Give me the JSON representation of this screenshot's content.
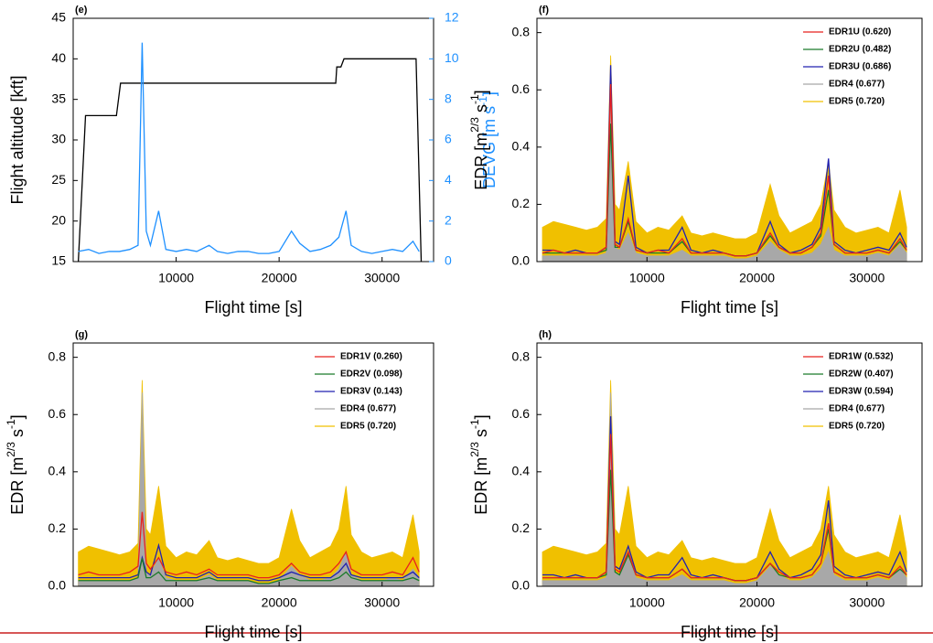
{
  "chart_data": [
    {
      "type": "line",
      "label": "(e)",
      "xlabel": "Flight time [s]",
      "ylabel_parts": [
        "Flight altitude [kft]"
      ],
      "y2label_parts": [
        "DEVG [m s",
        "-1",
        "]"
      ],
      "x": [
        500,
        1500,
        2500,
        3500,
        4500,
        5500,
        6300,
        6700,
        7100,
        7500,
        8300,
        9000,
        10000,
        11000,
        12000,
        13200,
        14000,
        15000,
        16000,
        17000,
        18000,
        19000,
        20000,
        21200,
        22000,
        23000,
        24000,
        25000,
        25800,
        26500,
        27000,
        28000,
        29000,
        30000,
        31000,
        32000,
        33000,
        33600
      ],
      "xlim": [
        0,
        35000
      ],
      "xticks": [
        10000,
        20000,
        30000
      ],
      "ylim": [
        15,
        45
      ],
      "yticks": [
        15,
        20,
        25,
        30,
        35,
        40,
        45
      ],
      "y2lim": [
        0,
        12
      ],
      "y2ticks": [
        0,
        2,
        4,
        6,
        8,
        10,
        12
      ],
      "y2color": "#1e90ff",
      "series": [
        {
          "axis": "y2",
          "color": "#1e90ff",
          "values": [
            0.5,
            0.6,
            0.4,
            0.5,
            0.5,
            0.6,
            0.8,
            10.8,
            1.5,
            0.8,
            2.5,
            0.6,
            0.5,
            0.6,
            0.5,
            0.8,
            0.5,
            0.4,
            0.5,
            0.5,
            0.4,
            0.4,
            0.5,
            1.5,
            0.9,
            0.5,
            0.6,
            0.8,
            1.2,
            2.5,
            0.8,
            0.5,
            0.4,
            0.5,
            0.6,
            0.5,
            1.0,
            0.5
          ]
        },
        {
          "color": "#000000",
          "x": [
            500,
            1200,
            4200,
            4600,
            25500,
            25600,
            26000,
            26300,
            33300,
            33800
          ],
          "values": [
            15,
            33,
            33,
            37,
            37,
            39,
            39,
            40,
            40,
            15
          ]
        }
      ]
    },
    {
      "type": "line",
      "label": "(f)",
      "xlabel": "Flight time [s]",
      "ylabel_parts": [
        "EDR [m",
        "2/3",
        " s",
        "-1",
        "]"
      ],
      "x": [
        500,
        1500,
        2500,
        3500,
        4500,
        5500,
        6300,
        6700,
        7100,
        7500,
        8300,
        9000,
        10000,
        11000,
        12000,
        13200,
        14000,
        15000,
        16000,
        17000,
        18000,
        19000,
        20000,
        21200,
        22000,
        23000,
        24000,
        25000,
        25800,
        26500,
        27000,
        28000,
        29000,
        30000,
        31000,
        32000,
        33000,
        33600
      ],
      "xlim": [
        0,
        35000
      ],
      "xticks": [
        10000,
        20000,
        30000
      ],
      "ylim": [
        0,
        0.85
      ],
      "yticks": [
        {
          "value": 0,
          "label": "0.0"
        },
        0.2,
        0.4,
        0.6,
        0.8
      ],
      "legend": "upper right",
      "series": [
        {
          "name": "EDR1U (0.620)",
          "color": "#e8211f",
          "values": [
            0.03,
            0.04,
            0.03,
            0.03,
            0.03,
            0.03,
            0.05,
            0.62,
            0.06,
            0.05,
            0.15,
            0.04,
            0.03,
            0.04,
            0.03,
            0.08,
            0.03,
            0.03,
            0.03,
            0.03,
            0.02,
            0.02,
            0.03,
            0.1,
            0.05,
            0.03,
            0.03,
            0.05,
            0.1,
            0.3,
            0.06,
            0.03,
            0.03,
            0.03,
            0.04,
            0.03,
            0.08,
            0.04
          ]
        },
        {
          "name": "EDR2U (0.482)",
          "color": "#1a7a2a",
          "values": [
            0.03,
            0.03,
            0.03,
            0.03,
            0.03,
            0.03,
            0.04,
            0.482,
            0.05,
            0.05,
            0.14,
            0.04,
            0.03,
            0.03,
            0.03,
            0.07,
            0.03,
            0.03,
            0.03,
            0.03,
            0.02,
            0.02,
            0.03,
            0.09,
            0.05,
            0.03,
            0.03,
            0.05,
            0.09,
            0.25,
            0.06,
            0.03,
            0.03,
            0.03,
            0.04,
            0.03,
            0.07,
            0.04
          ]
        },
        {
          "name": "EDR3U (0.686)",
          "color": "#2020b0",
          "values": [
            0.04,
            0.04,
            0.03,
            0.04,
            0.03,
            0.03,
            0.05,
            0.686,
            0.07,
            0.06,
            0.3,
            0.05,
            0.03,
            0.04,
            0.04,
            0.12,
            0.04,
            0.03,
            0.04,
            0.03,
            0.02,
            0.02,
            0.03,
            0.14,
            0.06,
            0.03,
            0.04,
            0.06,
            0.12,
            0.36,
            0.07,
            0.04,
            0.03,
            0.04,
            0.05,
            0.04,
            0.1,
            0.05
          ]
        },
        {
          "name": "EDR4 (0.677)",
          "color": "#a8a8a8",
          "style": "area",
          "values": [
            0.02,
            0.02,
            0.02,
            0.02,
            0.02,
            0.02,
            0.03,
            0.677,
            0.05,
            0.04,
            0.1,
            0.03,
            0.02,
            0.02,
            0.02,
            0.04,
            0.02,
            0.02,
            0.02,
            0.02,
            0.01,
            0.01,
            0.02,
            0.07,
            0.04,
            0.02,
            0.02,
            0.03,
            0.06,
            0.12,
            0.04,
            0.02,
            0.02,
            0.02,
            0.03,
            0.02,
            0.06,
            0.03
          ]
        },
        {
          "name": "EDR5 (0.720)",
          "color": "#f0c000",
          "style": "area",
          "values": [
            0.12,
            0.14,
            0.13,
            0.12,
            0.11,
            0.12,
            0.15,
            0.72,
            0.2,
            0.18,
            0.35,
            0.14,
            0.1,
            0.12,
            0.11,
            0.16,
            0.1,
            0.09,
            0.1,
            0.09,
            0.08,
            0.08,
            0.1,
            0.27,
            0.16,
            0.1,
            0.12,
            0.14,
            0.2,
            0.35,
            0.18,
            0.12,
            0.1,
            0.11,
            0.12,
            0.1,
            0.25,
            0.12
          ]
        }
      ]
    },
    {
      "type": "line",
      "label": "(g)",
      "xlabel": "Flight time [s]",
      "ylabel_parts": [
        "EDR [m",
        "2/3",
        " s",
        "-1",
        "]"
      ],
      "x": [
        500,
        1500,
        2500,
        3500,
        4500,
        5500,
        6300,
        6700,
        7100,
        7500,
        8300,
        9000,
        10000,
        11000,
        12000,
        13200,
        14000,
        15000,
        16000,
        17000,
        18000,
        19000,
        20000,
        21200,
        22000,
        23000,
        24000,
        25000,
        25800,
        26500,
        27000,
        28000,
        29000,
        30000,
        31000,
        32000,
        33000,
        33600
      ],
      "xlim": [
        0,
        35000
      ],
      "xticks": [
        10000,
        20000,
        30000
      ],
      "ylim": [
        0,
        0.85
      ],
      "yticks": [
        {
          "value": 0,
          "label": "0.0"
        },
        0.2,
        0.4,
        0.6,
        0.8
      ],
      "legend": "upper right",
      "series": [
        {
          "name": "EDR1V (0.260)",
          "color": "#e8211f",
          "values": [
            0.04,
            0.05,
            0.04,
            0.04,
            0.04,
            0.05,
            0.07,
            0.26,
            0.08,
            0.06,
            0.1,
            0.05,
            0.04,
            0.05,
            0.04,
            0.06,
            0.04,
            0.04,
            0.04,
            0.04,
            0.03,
            0.03,
            0.04,
            0.08,
            0.05,
            0.04,
            0.04,
            0.05,
            0.08,
            0.12,
            0.06,
            0.04,
            0.04,
            0.04,
            0.05,
            0.04,
            0.1,
            0.05
          ]
        },
        {
          "name": "EDR2V (0.098)",
          "color": "#1a7a2a",
          "values": [
            0.02,
            0.02,
            0.02,
            0.02,
            0.02,
            0.02,
            0.03,
            0.098,
            0.03,
            0.03,
            0.05,
            0.02,
            0.02,
            0.02,
            0.02,
            0.03,
            0.02,
            0.02,
            0.02,
            0.02,
            0.01,
            0.01,
            0.02,
            0.03,
            0.02,
            0.02,
            0.02,
            0.02,
            0.03,
            0.05,
            0.03,
            0.02,
            0.02,
            0.02,
            0.02,
            0.02,
            0.03,
            0.02
          ]
        },
        {
          "name": "EDR3V (0.143)",
          "color": "#2020b0",
          "values": [
            0.03,
            0.03,
            0.03,
            0.03,
            0.03,
            0.03,
            0.04,
            0.1,
            0.05,
            0.04,
            0.143,
            0.04,
            0.03,
            0.03,
            0.03,
            0.05,
            0.03,
            0.03,
            0.03,
            0.03,
            0.02,
            0.02,
            0.03,
            0.05,
            0.04,
            0.03,
            0.03,
            0.03,
            0.05,
            0.08,
            0.04,
            0.03,
            0.03,
            0.03,
            0.03,
            0.03,
            0.05,
            0.03
          ]
        },
        {
          "name": "EDR4 (0.677)",
          "color": "#a8a8a8",
          "style": "area",
          "values": [
            0.02,
            0.02,
            0.02,
            0.02,
            0.02,
            0.02,
            0.03,
            0.677,
            0.05,
            0.04,
            0.1,
            0.03,
            0.02,
            0.02,
            0.02,
            0.04,
            0.02,
            0.02,
            0.02,
            0.02,
            0.01,
            0.01,
            0.02,
            0.07,
            0.04,
            0.02,
            0.02,
            0.03,
            0.06,
            0.12,
            0.04,
            0.02,
            0.02,
            0.02,
            0.03,
            0.02,
            0.06,
            0.03
          ]
        },
        {
          "name": "EDR5 (0.720)",
          "color": "#f0c000",
          "style": "area",
          "values": [
            0.12,
            0.14,
            0.13,
            0.12,
            0.11,
            0.12,
            0.15,
            0.72,
            0.2,
            0.18,
            0.35,
            0.14,
            0.1,
            0.12,
            0.11,
            0.16,
            0.1,
            0.09,
            0.1,
            0.09,
            0.08,
            0.08,
            0.1,
            0.27,
            0.16,
            0.1,
            0.12,
            0.14,
            0.2,
            0.35,
            0.18,
            0.12,
            0.1,
            0.11,
            0.12,
            0.1,
            0.25,
            0.12
          ]
        }
      ]
    },
    {
      "type": "line",
      "label": "(h)",
      "xlabel": "Flight time [s]",
      "ylabel_parts": [
        "EDR [m",
        "2/3",
        " s",
        "-1",
        "]"
      ],
      "x": [
        500,
        1500,
        2500,
        3500,
        4500,
        5500,
        6300,
        6700,
        7100,
        7500,
        8300,
        9000,
        10000,
        11000,
        12000,
        13200,
        14000,
        15000,
        16000,
        17000,
        18000,
        19000,
        20000,
        21200,
        22000,
        23000,
        24000,
        25000,
        25800,
        26500,
        27000,
        28000,
        29000,
        30000,
        31000,
        32000,
        33000,
        33600
      ],
      "xlim": [
        0,
        35000
      ],
      "xticks": [
        10000,
        20000,
        30000
      ],
      "ylim": [
        0,
        0.85
      ],
      "yticks": [
        {
          "value": 0,
          "label": "0.0"
        },
        0.2,
        0.4,
        0.6,
        0.8
      ],
      "legend": "upper right",
      "series": [
        {
          "name": "EDR1W (0.532)",
          "color": "#e8211f",
          "values": [
            0.03,
            0.03,
            0.03,
            0.03,
            0.03,
            0.03,
            0.05,
            0.532,
            0.06,
            0.05,
            0.12,
            0.04,
            0.03,
            0.03,
            0.03,
            0.06,
            0.03,
            0.03,
            0.03,
            0.03,
            0.02,
            0.02,
            0.03,
            0.08,
            0.05,
            0.03,
            0.03,
            0.04,
            0.08,
            0.22,
            0.05,
            0.03,
            0.03,
            0.03,
            0.04,
            0.03,
            0.07,
            0.04
          ]
        },
        {
          "name": "EDR2W (0.407)",
          "color": "#1a7a2a",
          "values": [
            0.03,
            0.03,
            0.03,
            0.03,
            0.03,
            0.03,
            0.04,
            0.407,
            0.05,
            0.04,
            0.11,
            0.04,
            0.03,
            0.03,
            0.03,
            0.06,
            0.03,
            0.03,
            0.03,
            0.03,
            0.02,
            0.02,
            0.03,
            0.08,
            0.04,
            0.03,
            0.03,
            0.04,
            0.08,
            0.2,
            0.05,
            0.03,
            0.03,
            0.03,
            0.04,
            0.03,
            0.06,
            0.04
          ]
        },
        {
          "name": "EDR3W (0.594)",
          "color": "#2020b0",
          "values": [
            0.04,
            0.04,
            0.03,
            0.04,
            0.03,
            0.03,
            0.05,
            0.594,
            0.07,
            0.06,
            0.14,
            0.05,
            0.03,
            0.04,
            0.04,
            0.1,
            0.04,
            0.03,
            0.04,
            0.03,
            0.02,
            0.02,
            0.03,
            0.12,
            0.06,
            0.03,
            0.04,
            0.06,
            0.11,
            0.3,
            0.07,
            0.04,
            0.03,
            0.04,
            0.05,
            0.04,
            0.12,
            0.05
          ]
        },
        {
          "name": "EDR4 (0.677)",
          "color": "#a8a8a8",
          "style": "area",
          "values": [
            0.02,
            0.02,
            0.02,
            0.02,
            0.02,
            0.02,
            0.03,
            0.677,
            0.05,
            0.04,
            0.1,
            0.03,
            0.02,
            0.02,
            0.02,
            0.04,
            0.02,
            0.02,
            0.02,
            0.02,
            0.01,
            0.01,
            0.02,
            0.07,
            0.04,
            0.02,
            0.02,
            0.03,
            0.06,
            0.12,
            0.04,
            0.02,
            0.02,
            0.02,
            0.03,
            0.02,
            0.06,
            0.03
          ]
        },
        {
          "name": "EDR5 (0.720)",
          "color": "#f0c000",
          "style": "area",
          "values": [
            0.12,
            0.14,
            0.13,
            0.12,
            0.11,
            0.12,
            0.15,
            0.72,
            0.2,
            0.18,
            0.35,
            0.14,
            0.1,
            0.12,
            0.11,
            0.16,
            0.1,
            0.09,
            0.1,
            0.09,
            0.08,
            0.08,
            0.1,
            0.27,
            0.16,
            0.1,
            0.12,
            0.14,
            0.2,
            0.35,
            0.18,
            0.12,
            0.1,
            0.11,
            0.12,
            0.1,
            0.25,
            0.12
          ]
        }
      ]
    }
  ]
}
